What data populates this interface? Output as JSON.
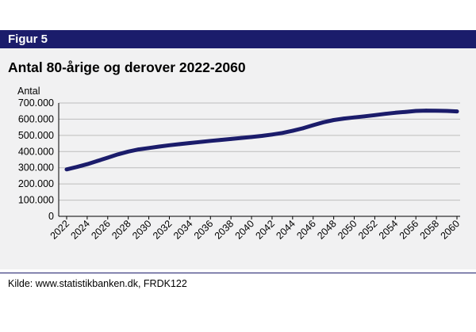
{
  "figure_label": "Figur 5",
  "source_text": "Kilde:  www.statistikbanken.dk, FRDK122",
  "colors": {
    "header": "#1b1c6b",
    "panel": "#f1f1f2",
    "line": "#1b1c6b",
    "grid": "#bdbdbd"
  },
  "chart_data": {
    "type": "line",
    "title": "Antal 80-årige og derover 2022-2060",
    "ylabel": "Antal",
    "xlabel": "",
    "ylim": [
      0,
      700000
    ],
    "xlim": [
      2022,
      2060
    ],
    "grid": true,
    "yticks": [
      0,
      100000,
      200000,
      300000,
      400000,
      500000,
      600000,
      700000
    ],
    "ytick_labels": [
      "0",
      "100.000",
      "200.000",
      "300.000",
      "400.000",
      "500.000",
      "600.000",
      "700.000"
    ],
    "xticks": [
      2022,
      2024,
      2026,
      2028,
      2030,
      2032,
      2034,
      2036,
      2038,
      2040,
      2042,
      2044,
      2046,
      2048,
      2050,
      2052,
      2054,
      2056,
      2058,
      2060
    ],
    "xtick_labels": [
      "2022",
      "2024",
      "2026",
      "2028",
      "2030",
      "2032",
      "2034",
      "2036",
      "2038",
      "2040",
      "2042",
      "2044",
      "2046",
      "2048",
      "2050",
      "2052",
      "2054",
      "2056",
      "2058",
      "2060"
    ],
    "series": [
      {
        "x": [
          2022,
          2023,
          2024,
          2025,
          2026,
          2027,
          2028,
          2029,
          2030,
          2031,
          2032,
          2033,
          2034,
          2035,
          2036,
          2037,
          2038,
          2039,
          2040,
          2041,
          2042,
          2043,
          2044,
          2045,
          2046,
          2047,
          2048,
          2049,
          2050,
          2051,
          2052,
          2053,
          2054,
          2055,
          2056,
          2057,
          2058,
          2059,
          2060
        ],
        "values": [
          290000,
          305000,
          322000,
          342000,
          362000,
          383000,
          400000,
          413000,
          422000,
          431000,
          439000,
          446000,
          453000,
          459000,
          466000,
          472000,
          478000,
          484000,
          490000,
          497000,
          505000,
          515000,
          528000,
          544000,
          563000,
          581000,
          595000,
          604000,
          611000,
          618000,
          625000,
          633000,
          640000,
          645000,
          651000,
          653000,
          652000,
          651000,
          648000
        ]
      }
    ]
  }
}
